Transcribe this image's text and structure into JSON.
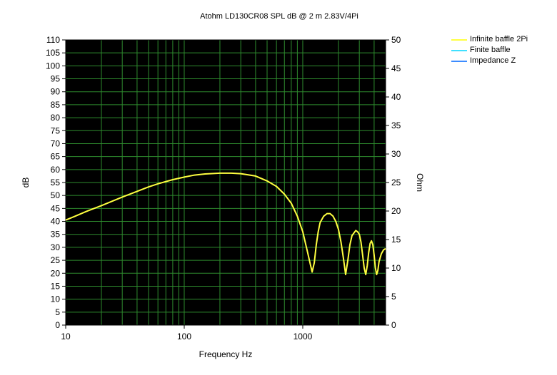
{
  "chart_data": {
    "type": "line",
    "title": "Atohm LD130CR08 SPL dB @ 2 m 2.83V/4Pi",
    "xlabel": "Frequency Hz",
    "ylabel": "dB",
    "y2label": "Ohm",
    "x_scale": "log",
    "xlim": [
      10,
      5000
    ],
    "ylim": [
      0,
      110
    ],
    "y2lim": [
      0,
      50
    ],
    "x_ticks": [
      "10",
      "100",
      "1000"
    ],
    "y_ticks": [
      "0",
      "5",
      "10",
      "15",
      "20",
      "25",
      "30",
      "35",
      "40",
      "45",
      "50",
      "55",
      "60",
      "65",
      "70",
      "75",
      "80",
      "85",
      "90",
      "95",
      "100",
      "105",
      "110"
    ],
    "y2_ticks": [
      "0",
      "5",
      "10",
      "15",
      "20",
      "25",
      "30",
      "35",
      "40",
      "45",
      "50"
    ],
    "grid": true,
    "legend_position": "top-right",
    "background": "#000000",
    "grid_color": "#2e8b2e",
    "series": [
      {
        "name": "Infinite baffle 2Pi",
        "color": "#ffff40",
        "x": [
          10,
          12,
          15,
          20,
          25,
          30,
          40,
          50,
          60,
          80,
          100,
          120,
          150,
          200,
          250,
          300,
          400,
          500,
          600,
          700,
          800,
          900,
          1000,
          1100,
          1150,
          1200,
          1250,
          1300,
          1350,
          1400,
          1500,
          1600,
          1700,
          1800,
          1900,
          2000,
          2100,
          2200,
          2300,
          2400,
          2500,
          2600,
          2800,
          2900,
          3000,
          3100,
          3200,
          3300,
          3400,
          3500,
          3600,
          3700,
          3800,
          3900,
          4000,
          4100,
          4200,
          4300,
          4400,
          4600,
          4800,
          5000
        ],
        "y": [
          40.5,
          42.0,
          43.9,
          46.1,
          47.9,
          49.4,
          51.6,
          53.3,
          54.5,
          56.1,
          57.1,
          57.8,
          58.3,
          58.6,
          58.6,
          58.4,
          57.5,
          55.6,
          53.5,
          50.5,
          47.0,
          42.0,
          36.0,
          28.0,
          24.0,
          20.5,
          24.0,
          31.0,
          36.0,
          39.5,
          42.0,
          43.0,
          43.0,
          42.0,
          40.0,
          37.0,
          32.0,
          26.0,
          19.5,
          25.0,
          31.0,
          34.5,
          36.5,
          36.0,
          35.0,
          32.0,
          27.0,
          22.0,
          19.5,
          23.0,
          28.0,
          31.5,
          32.5,
          31.0,
          27.0,
          22.0,
          19.5,
          21.0,
          24.5,
          27.5,
          29.0,
          29.5
        ]
      },
      {
        "name": "Finite baffle",
        "color": "#40e0ff",
        "x": [],
        "y": []
      },
      {
        "name": "Impedance Z",
        "color": "#3c8cff",
        "x": [],
        "y": []
      }
    ]
  }
}
